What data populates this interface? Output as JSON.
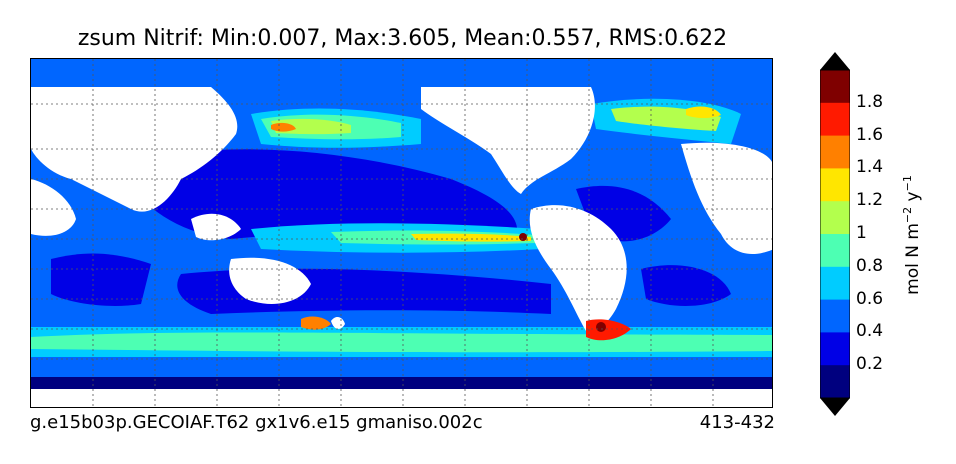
{
  "title": "zsum Nitrif: Min:0.007, Max:3.605, Mean:0.557, RMS:0.622",
  "footer": {
    "case_name": "g.e15b03p.GECOIAF.T62 gx1v6.e15 gmaniso.002c",
    "years": "413-432"
  },
  "colorbar": {
    "label_main": "mol N m",
    "label_exp1": "−2",
    "label_mid": " y",
    "label_exp2": "−1",
    "ticks": [
      "1.8",
      "1.6",
      "1.4",
      "1.2",
      "1",
      "0.8",
      "0.6",
      "0.4",
      "0.2"
    ],
    "colors": [
      "#7f0000",
      "#ff1a00",
      "#ff8000",
      "#ffe600",
      "#b3ff4d",
      "#4dffb3",
      "#00ccff",
      "#0066ff",
      "#0000e6",
      "#00007f"
    ]
  },
  "palette": {
    "land": "#ffffff",
    "deep_blue": "#00007f",
    "blue": "#0000e6",
    "mid_blue": "#0066ff",
    "cyan": "#00ccff",
    "aqua": "#4dffb3",
    "lime": "#b3ff4d",
    "yellow": "#ffe600",
    "orange": "#ff8000",
    "red": "#ff1a00",
    "dark_red": "#7f0000"
  }
}
